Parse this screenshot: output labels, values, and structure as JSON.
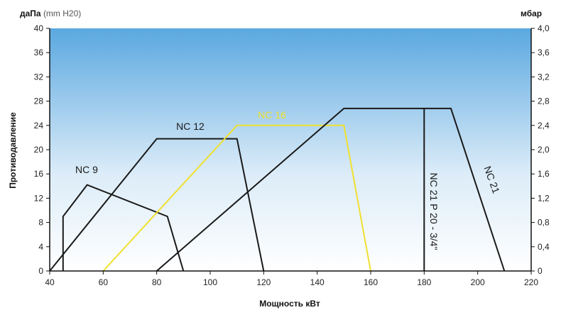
{
  "chart_data": {
    "type": "line",
    "left_axis_unit": "даПа",
    "left_axis_unit_note": "(mm H20)",
    "right_axis_unit": "мбар",
    "ylabel": "Противодавление",
    "xlabel": "Мощность кВт",
    "xlim": [
      40,
      220
    ],
    "ylim": [
      0,
      40
    ],
    "x_ticks": [
      "40",
      "60",
      "80",
      "100",
      "120",
      "140",
      "160",
      "180",
      "200",
      "220"
    ],
    "y_ticks": [
      "0",
      "4",
      "8",
      "12",
      "16",
      "20",
      "24",
      "28",
      "32",
      "36",
      "40"
    ],
    "y2_ticks": [
      "0",
      "0,4",
      "0,8",
      "1,2",
      "1,6",
      "2,0",
      "2,4",
      "2,8",
      "3,2",
      "3,6",
      "4,0"
    ],
    "grid": false,
    "background": "gradient sky-blue top to white",
    "series": [
      {
        "name": "NC 9",
        "color": "#1a1a1a",
        "points": [
          [
            45,
            0
          ],
          [
            45,
            9
          ],
          [
            54,
            14.2
          ],
          [
            84,
            9
          ],
          [
            90,
            0
          ]
        ]
      },
      {
        "name": "NC 12",
        "color": "#1a1a1a",
        "points": [
          [
            40,
            0
          ],
          [
            80,
            21.8
          ],
          [
            110,
            21.8
          ],
          [
            120,
            0
          ]
        ]
      },
      {
        "name": "NC 16",
        "color": "#f0e030",
        "points": [
          [
            60,
            0
          ],
          [
            110,
            24
          ],
          [
            150,
            24
          ],
          [
            160,
            0
          ]
        ]
      },
      {
        "name": "NC 21",
        "color": "#1a1a1a",
        "points": [
          [
            80,
            0
          ],
          [
            150,
            26.8
          ],
          [
            190,
            26.8
          ],
          [
            210,
            0
          ]
        ]
      },
      {
        "name": "NC 21 P 20 - 3/4\"",
        "color": "#1a1a1a",
        "points": [
          [
            180,
            26.8
          ],
          [
            180,
            0
          ]
        ]
      }
    ]
  }
}
